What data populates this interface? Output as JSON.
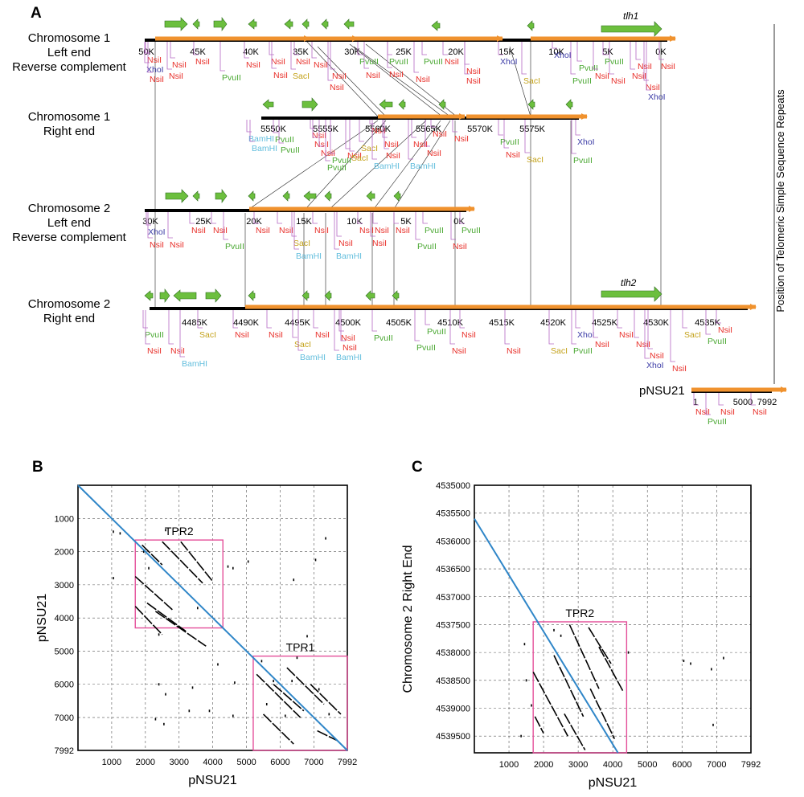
{
  "panels": {
    "A": "A",
    "B": "B",
    "C": "C"
  },
  "colors": {
    "NsiI": "#e8302a",
    "PvuII": "#4aa832",
    "XhoI": "#3b3ba6",
    "SacI": "#c4a21a",
    "BamHI": "#63bedd",
    "arrow": "#f0922e",
    "gene": "#6cbf3e",
    "diag": "#2f86c8",
    "box": "#e4509a",
    "stem": "#b567c4"
  },
  "side_label": "Position of Telomeric Simple Sequence Repeats",
  "tracks": [
    {
      "name": [
        "Chromosome 1",
        "Left end",
        "Reverse complement"
      ],
      "ticks": [
        "50K",
        "45K",
        "40K",
        "35K",
        "30K",
        "25K",
        "20K",
        "15K",
        "10K",
        "5K",
        "0K"
      ],
      "gene_label": "tlh1",
      "sites": [
        {
          "name": "NsiI",
          "color": "NsiI"
        },
        {
          "name": "XhoI",
          "color": "XhoI"
        },
        {
          "name": "NsiI",
          "color": "NsiI"
        },
        {
          "name": "NsiI",
          "color": "NsiI"
        },
        {
          "name": "NsiI",
          "color": "NsiI"
        },
        {
          "name": "NsiI",
          "color": "NsiI"
        },
        {
          "name": "PvuII",
          "color": "PvuII"
        },
        {
          "name": "NsiI",
          "color": "NsiI"
        },
        {
          "name": "NsiI",
          "color": "NsiI"
        },
        {
          "name": "NsiI",
          "color": "NsiI"
        },
        {
          "name": "SacI",
          "color": "SacI"
        },
        {
          "name": "NsiI",
          "color": "NsiI"
        },
        {
          "name": "NsiI",
          "color": "NsiI"
        },
        {
          "name": "NsiI",
          "color": "NsiI"
        },
        {
          "name": "NsiI",
          "color": "NsiI"
        },
        {
          "name": "PvuII",
          "color": "PvuII"
        },
        {
          "name": "NsiI",
          "color": "NsiI"
        },
        {
          "name": "PvuII",
          "color": "PvuII"
        },
        {
          "name": "PvuII",
          "color": "PvuII"
        },
        {
          "name": "NsiI",
          "color": "NsiI"
        },
        {
          "name": "NsiI",
          "color": "NsiI"
        },
        {
          "name": "NsiI",
          "color": "NsiI"
        },
        {
          "name": "NsiI",
          "color": "NsiI"
        },
        {
          "name": "NsiI",
          "color": "NsiI"
        },
        {
          "name": "XhoI",
          "color": "XhoI"
        },
        {
          "name": "SacI",
          "color": "SacI"
        },
        {
          "name": "XhoI",
          "color": "XhoI"
        },
        {
          "name": "PvuII",
          "color": "PvuII"
        },
        {
          "name": "PvuII",
          "color": "PvuII"
        },
        {
          "name": "NsiI",
          "color": "NsiI"
        },
        {
          "name": "NsiI",
          "color": "NsiI"
        },
        {
          "name": "PvuII",
          "color": "PvuII"
        },
        {
          "name": "NsiI",
          "color": "NsiI"
        },
        {
          "name": "NsiI",
          "color": "NsiI"
        },
        {
          "name": "NsiI",
          "color": "NsiI"
        },
        {
          "name": "NsiI",
          "color": "NsiI"
        },
        {
          "name": "XhoI",
          "color": "XhoI"
        }
      ]
    },
    {
      "name": [
        "Chromosome 1",
        "Right end"
      ],
      "ticks": [
        "5550K",
        "5555K",
        "5560K",
        "5565K",
        "5570K",
        "5575K"
      ],
      "sites": [
        {
          "name": "BamHI",
          "color": "BamHI"
        },
        {
          "name": "BamHI",
          "color": "BamHI"
        },
        {
          "name": "PvuII",
          "color": "PvuII"
        },
        {
          "name": "PvuII",
          "color": "PvuII"
        },
        {
          "name": "NsiI",
          "color": "NsiI"
        },
        {
          "name": "NsiI",
          "color": "NsiI"
        },
        {
          "name": "NsiI",
          "color": "NsiI"
        },
        {
          "name": "PvuII",
          "color": "PvuII"
        },
        {
          "name": "PvuII",
          "color": "PvuII"
        },
        {
          "name": "SacI",
          "color": "SacI"
        },
        {
          "name": "NsiI",
          "color": "NsiI"
        },
        {
          "name": "SacI",
          "color": "SacI"
        },
        {
          "name": "NsiI",
          "color": "NsiI"
        },
        {
          "name": "BamHI",
          "color": "BamHI"
        },
        {
          "name": "NsiI",
          "color": "NsiI"
        },
        {
          "name": "NsiI",
          "color": "NsiI"
        },
        {
          "name": "NsiI",
          "color": "NsiI"
        },
        {
          "name": "BamHI",
          "color": "BamHI"
        },
        {
          "name": "NsiI",
          "color": "NsiI"
        },
        {
          "name": "NsiI",
          "color": "NsiI"
        },
        {
          "name": "PvuII",
          "color": "PvuII"
        },
        {
          "name": "NsiI",
          "color": "NsiI"
        },
        {
          "name": "NsiI",
          "color": "NsiI"
        },
        {
          "name": "SacI",
          "color": "SacI"
        },
        {
          "name": "XhoI",
          "color": "XhoI"
        },
        {
          "name": "PvuII",
          "color": "PvuII"
        }
      ]
    },
    {
      "name": [
        "Chromosome 2",
        "Left end",
        "Reverse complement"
      ],
      "ticks": [
        "30K",
        "25K",
        "20K",
        "15K",
        "10K",
        "5K",
        "0K"
      ],
      "sites": [
        {
          "name": "XhoI",
          "color": "XhoI"
        },
        {
          "name": "NsiI",
          "color": "NsiI"
        },
        {
          "name": "NsiI",
          "color": "NsiI"
        },
        {
          "name": "NsiI",
          "color": "NsiI"
        },
        {
          "name": "NsiI",
          "color": "NsiI"
        },
        {
          "name": "PvuII",
          "color": "PvuII"
        },
        {
          "name": "NsiI",
          "color": "NsiI"
        },
        {
          "name": "NsiI",
          "color": "NsiI"
        },
        {
          "name": "SacI",
          "color": "SacI"
        },
        {
          "name": "BamHI",
          "color": "BamHI"
        },
        {
          "name": "NsiI",
          "color": "NsiI"
        },
        {
          "name": "BamHI",
          "color": "BamHI"
        },
        {
          "name": "NsiI",
          "color": "NsiI"
        },
        {
          "name": "NsiI",
          "color": "NsiI"
        },
        {
          "name": "NsiI",
          "color": "NsiI"
        },
        {
          "name": "NsiI",
          "color": "NsiI"
        },
        {
          "name": "NsiI",
          "color": "NsiI"
        },
        {
          "name": "PvuII",
          "color": "PvuII"
        },
        {
          "name": "PvuII",
          "color": "PvuII"
        },
        {
          "name": "PvuII",
          "color": "PvuII"
        },
        {
          "name": "NsiI",
          "color": "NsiI"
        }
      ]
    },
    {
      "name": [
        "Chromosome 2",
        "Right end"
      ],
      "ticks": [
        "4485K",
        "4490K",
        "4495K",
        "4500K",
        "4505K",
        "4510K",
        "4515K",
        "4520K",
        "4525K",
        "4530K",
        "4535K"
      ],
      "gene_label": "tlh2",
      "sites": [
        {
          "name": "PvuII",
          "color": "PvuII"
        },
        {
          "name": "NsiI",
          "color": "NsiI"
        },
        {
          "name": "NsiI",
          "color": "NsiI"
        },
        {
          "name": "BamHI",
          "color": "BamHI"
        },
        {
          "name": "SacI",
          "color": "SacI"
        },
        {
          "name": "NsiI",
          "color": "NsiI"
        },
        {
          "name": "NsiI",
          "color": "NsiI"
        },
        {
          "name": "SacI",
          "color": "SacI"
        },
        {
          "name": "BamHI",
          "color": "BamHI"
        },
        {
          "name": "BamHI",
          "color": "BamHI"
        },
        {
          "name": "NsiI",
          "color": "NsiI"
        },
        {
          "name": "NsiI",
          "color": "NsiI"
        },
        {
          "name": "NsiI",
          "color": "NsiI"
        },
        {
          "name": "PvuII",
          "color": "PvuII"
        },
        {
          "name": "PvuII",
          "color": "PvuII"
        },
        {
          "name": "PvuII",
          "color": "PvuII"
        },
        {
          "name": "NsiI",
          "color": "NsiI"
        },
        {
          "name": "NsiI",
          "color": "NsiI"
        },
        {
          "name": "NsiI",
          "color": "NsiI"
        },
        {
          "name": "SacI",
          "color": "SacI"
        },
        {
          "name": "PvuII",
          "color": "PvuII"
        },
        {
          "name": "XhoI",
          "color": "XhoI"
        },
        {
          "name": "NsiI",
          "color": "NsiI"
        },
        {
          "name": "NsiI",
          "color": "NsiI"
        },
        {
          "name": "NsiI",
          "color": "NsiI"
        },
        {
          "name": "NsiI",
          "color": "NsiI"
        },
        {
          "name": "XhoI",
          "color": "XhoI"
        },
        {
          "name": "NsiI",
          "color": "NsiI"
        },
        {
          "name": "SacI",
          "color": "SacI"
        },
        {
          "name": "PvuII",
          "color": "PvuII"
        },
        {
          "name": "NsiI",
          "color": "NsiI"
        }
      ]
    },
    {
      "name": [
        "pNSU21"
      ],
      "ticks": [
        "1",
        "5000",
        "7992"
      ],
      "sites": [
        {
          "name": "NsiI",
          "color": "NsiI"
        },
        {
          "name": "PvuII",
          "color": "PvuII"
        },
        {
          "name": "NsiI",
          "color": "NsiI"
        },
        {
          "name": "NsiI",
          "color": "NsiI"
        }
      ]
    }
  ],
  "chart_data": [
    {
      "type": "scatter",
      "title": "",
      "xlabel": "pNSU21",
      "ylabel": "pNSU21",
      "xlim": [
        0,
        7992
      ],
      "ylim": [
        0,
        7992
      ],
      "y_inverted": true,
      "xticks": [
        1000,
        2000,
        3000,
        4000,
        5000,
        6000,
        7000,
        7992
      ],
      "yticks": [
        1000,
        2000,
        3000,
        4000,
        5000,
        6000,
        7000,
        7992
      ],
      "diagonal": {
        "x": [
          0,
          7992
        ],
        "y": [
          0,
          7992
        ]
      },
      "boxes": [
        {
          "label": "TPR2",
          "x": [
            1700,
            4300
          ],
          "y": [
            1650,
            4300
          ]
        },
        {
          "label": "TPR1",
          "x": [
            5200,
            7992
          ],
          "y": [
            5150,
            7992
          ]
        }
      ],
      "segments": [
        [
          1700,
          2750,
          2800,
          3750
        ],
        [
          2050,
          3550,
          3200,
          4400
        ],
        [
          2500,
          1700,
          3700,
          2950
        ],
        [
          3050,
          1700,
          4000,
          2900
        ],
        [
          1700,
          3650,
          2500,
          4500
        ],
        [
          2300,
          3800,
          3800,
          4850
        ],
        [
          1900,
          1800,
          2500,
          2400
        ],
        [
          5300,
          5700,
          6600,
          7000
        ],
        [
          5800,
          6000,
          6700,
          6800
        ],
        [
          6200,
          5500,
          7300,
          6600
        ],
        [
          6900,
          6000,
          7800,
          6900
        ],
        [
          5500,
          6900,
          6400,
          7800
        ],
        [
          7100,
          7400,
          7700,
          7700
        ]
      ],
      "dots": [
        [
          1050,
          1400
        ],
        [
          1250,
          1450
        ],
        [
          1950,
          2000
        ],
        [
          2600,
          1350
        ],
        [
          2100,
          2500
        ],
        [
          2400,
          4500
        ],
        [
          3550,
          3700
        ],
        [
          4450,
          2450
        ],
        [
          4600,
          2500
        ],
        [
          5050,
          2300
        ],
        [
          6400,
          2850
        ],
        [
          7050,
          2250
        ],
        [
          7350,
          1600
        ],
        [
          5450,
          5300
        ],
        [
          5800,
          5900
        ],
        [
          6350,
          5900
        ],
        [
          6800,
          4550
        ],
        [
          6500,
          5200
        ],
        [
          2400,
          6000
        ],
        [
          2600,
          6300
        ],
        [
          3400,
          6100
        ],
        [
          4150,
          5400
        ],
        [
          4650,
          5950
        ],
        [
          3900,
          6800
        ],
        [
          2550,
          7200
        ],
        [
          3300,
          6800
        ],
        [
          4600,
          6950
        ],
        [
          5600,
          6600
        ],
        [
          6150,
          6950
        ],
        [
          7150,
          6150
        ],
        [
          7450,
          6900
        ],
        [
          2300,
          7050
        ],
        [
          1050,
          2800
        ]
      ]
    },
    {
      "type": "scatter",
      "title": "",
      "xlabel": "pNSU21",
      "ylabel": "Chromosome 2 Right End",
      "xlim": [
        0,
        7992
      ],
      "ylim": [
        4535000,
        4539800
      ],
      "y_inverted": true,
      "xticks": [
        1000,
        2000,
        3000,
        4000,
        5000,
        6000,
        7000,
        7992
      ],
      "yticks": [
        4535000,
        4535500,
        4536000,
        4536500,
        4537000,
        4537500,
        4538000,
        4538500,
        4539000,
        4539500
      ],
      "diagonal": {
        "x": [
          0,
          4150
        ],
        "y": [
          4535600,
          4539800
        ]
      },
      "boxes": [
        {
          "label": "TPR2",
          "x": [
            1700,
            4400
          ],
          "y": [
            4537450,
            4539800
          ]
        }
      ],
      "segments": [
        [
          2750,
          4537500,
          3600,
          4538650
        ],
        [
          3300,
          4537550,
          3950,
          4538200
        ],
        [
          2300,
          4538050,
          3150,
          4539150
        ],
        [
          1700,
          4538350,
          2700,
          4539500
        ],
        [
          3350,
          4538650,
          4050,
          4539550
        ],
        [
          1750,
          4539150,
          2000,
          4539450
        ],
        [
          2600,
          4539100,
          3200,
          4539750
        ],
        [
          3600,
          4537900,
          4300,
          4538700
        ]
      ],
      "dots": [
        [
          1450,
          4537850
        ],
        [
          1500,
          4538500
        ],
        [
          1650,
          4538950
        ],
        [
          2300,
          4537600
        ],
        [
          2500,
          4537700
        ],
        [
          4450,
          4538000
        ],
        [
          6050,
          4538150
        ],
        [
          6250,
          4538200
        ],
        [
          6850,
          4538300
        ],
        [
          7200,
          4538100
        ],
        [
          6900,
          4539300
        ],
        [
          1350,
          4539500
        ]
      ]
    }
  ]
}
